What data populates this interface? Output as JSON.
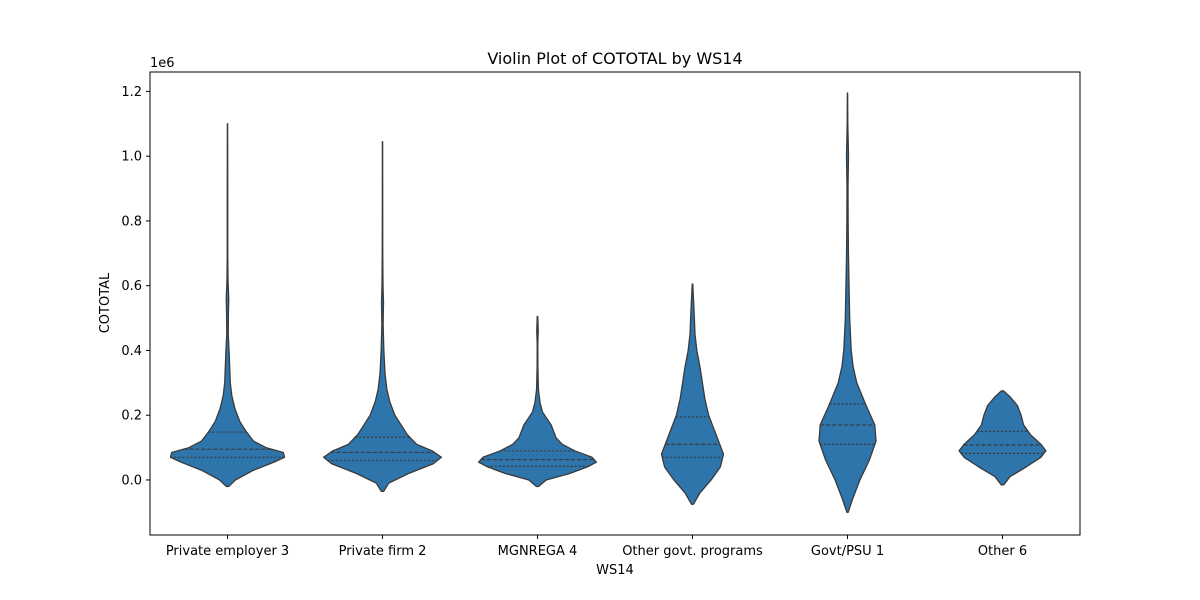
{
  "chart_data": {
    "type": "violin",
    "title": "Violin Plot of COTOTAL by WS14",
    "xlabel": "WS14",
    "ylabel": "COTOTAL",
    "y_offset_label": "1e6",
    "y_scale": 1000000,
    "ylim": [
      -170000,
      1260000
    ],
    "yticks": [
      0,
      200000,
      400000,
      600000,
      800000,
      1000000,
      1200000
    ],
    "ytick_labels": [
      "0.0",
      "0.2",
      "0.4",
      "0.6",
      "0.8",
      "1.0",
      "1.2"
    ],
    "fill_color": "#2e75ac",
    "edge_color": "#3a3a3a",
    "categories": [
      {
        "label": "Private employer 3",
        "min": -20000,
        "max": 1100000,
        "q1": 70000,
        "median": 95000,
        "q3": 148000,
        "profile": [
          [
            -20000,
            0.02
          ],
          [
            0,
            0.13
          ],
          [
            30000,
            0.42
          ],
          [
            55000,
            0.75
          ],
          [
            70000,
            0.92
          ],
          [
            85000,
            0.9
          ],
          [
            100000,
            0.62
          ],
          [
            120000,
            0.42
          ],
          [
            150000,
            0.3
          ],
          [
            180000,
            0.2
          ],
          [
            220000,
            0.12
          ],
          [
            260000,
            0.07
          ],
          [
            300000,
            0.045
          ],
          [
            350000,
            0.035
          ],
          [
            400000,
            0.025
          ],
          [
            450000,
            0.012
          ],
          [
            520000,
            0.015
          ],
          [
            560000,
            0.02
          ],
          [
            620000,
            0.008
          ],
          [
            700000,
            0.004
          ],
          [
            850000,
            0.004
          ],
          [
            1000000,
            0.003
          ],
          [
            1100000,
            0.002
          ]
        ]
      },
      {
        "label": "Private firm 2",
        "min": -35000,
        "max": 1045000,
        "q1": 60000,
        "median": 85000,
        "q3": 132000,
        "profile": [
          [
            -35000,
            0.02
          ],
          [
            -10000,
            0.1
          ],
          [
            20000,
            0.42
          ],
          [
            50000,
            0.82
          ],
          [
            70000,
            0.95
          ],
          [
            90000,
            0.8
          ],
          [
            110000,
            0.55
          ],
          [
            140000,
            0.4
          ],
          [
            170000,
            0.3
          ],
          [
            200000,
            0.2
          ],
          [
            240000,
            0.12
          ],
          [
            280000,
            0.07
          ],
          [
            330000,
            0.04
          ],
          [
            400000,
            0.022
          ],
          [
            480000,
            0.01
          ],
          [
            550000,
            0.016
          ],
          [
            600000,
            0.008
          ],
          [
            700000,
            0.004
          ],
          [
            850000,
            0.003
          ],
          [
            1045000,
            0.002
          ]
        ]
      },
      {
        "label": "MGNREGA 4",
        "min": -20000,
        "max": 505000,
        "q1": 42000,
        "median": 63000,
        "q3": 90000,
        "profile": [
          [
            -20000,
            0.02
          ],
          [
            0,
            0.14
          ],
          [
            20000,
            0.52
          ],
          [
            40000,
            0.8
          ],
          [
            55000,
            0.95
          ],
          [
            70000,
            0.88
          ],
          [
            90000,
            0.6
          ],
          [
            110000,
            0.4
          ],
          [
            130000,
            0.3
          ],
          [
            150000,
            0.26
          ],
          [
            170000,
            0.22
          ],
          [
            190000,
            0.15
          ],
          [
            210000,
            0.08
          ],
          [
            240000,
            0.04
          ],
          [
            280000,
            0.015
          ],
          [
            350000,
            0.006
          ],
          [
            420000,
            0.005
          ],
          [
            460000,
            0.012
          ],
          [
            505000,
            0.004
          ]
        ]
      },
      {
        "label": "Other govt. programs",
        "min": -75000,
        "max": 605000,
        "q1": 70000,
        "median": 110000,
        "q3": 195000,
        "profile": [
          [
            -75000,
            0.015
          ],
          [
            -40000,
            0.12
          ],
          [
            0,
            0.3
          ],
          [
            40000,
            0.45
          ],
          [
            80000,
            0.5
          ],
          [
            110000,
            0.44
          ],
          [
            150000,
            0.36
          ],
          [
            200000,
            0.26
          ],
          [
            250000,
            0.2
          ],
          [
            300000,
            0.16
          ],
          [
            350000,
            0.12
          ],
          [
            400000,
            0.07
          ],
          [
            450000,
            0.04
          ],
          [
            500000,
            0.03
          ],
          [
            550000,
            0.018
          ],
          [
            605000,
            0.004
          ]
        ]
      },
      {
        "label": "Govt/PSU 1",
        "min": -100000,
        "max": 1195000,
        "q1": 110000,
        "median": 170000,
        "q3": 235000,
        "profile": [
          [
            -100000,
            0.01
          ],
          [
            -60000,
            0.08
          ],
          [
            0,
            0.2
          ],
          [
            60000,
            0.35
          ],
          [
            120000,
            0.46
          ],
          [
            170000,
            0.44
          ],
          [
            230000,
            0.3
          ],
          [
            300000,
            0.15
          ],
          [
            350000,
            0.09
          ],
          [
            400000,
            0.06
          ],
          [
            500000,
            0.035
          ],
          [
            600000,
            0.025
          ],
          [
            700000,
            0.015
          ],
          [
            800000,
            0.01
          ],
          [
            900000,
            0.008
          ],
          [
            1000000,
            0.016
          ],
          [
            1100000,
            0.005
          ],
          [
            1195000,
            0.002
          ]
        ]
      },
      {
        "label": "Other 6",
        "min": -15000,
        "max": 275000,
        "q1": 82000,
        "median": 108000,
        "q3": 150000,
        "profile": [
          [
            -15000,
            0.02
          ],
          [
            10000,
            0.12
          ],
          [
            40000,
            0.38
          ],
          [
            70000,
            0.62
          ],
          [
            90000,
            0.7
          ],
          [
            110000,
            0.62
          ],
          [
            140000,
            0.45
          ],
          [
            170000,
            0.34
          ],
          [
            200000,
            0.3
          ],
          [
            230000,
            0.24
          ],
          [
            255000,
            0.13
          ],
          [
            275000,
            0.02
          ]
        ]
      }
    ]
  }
}
